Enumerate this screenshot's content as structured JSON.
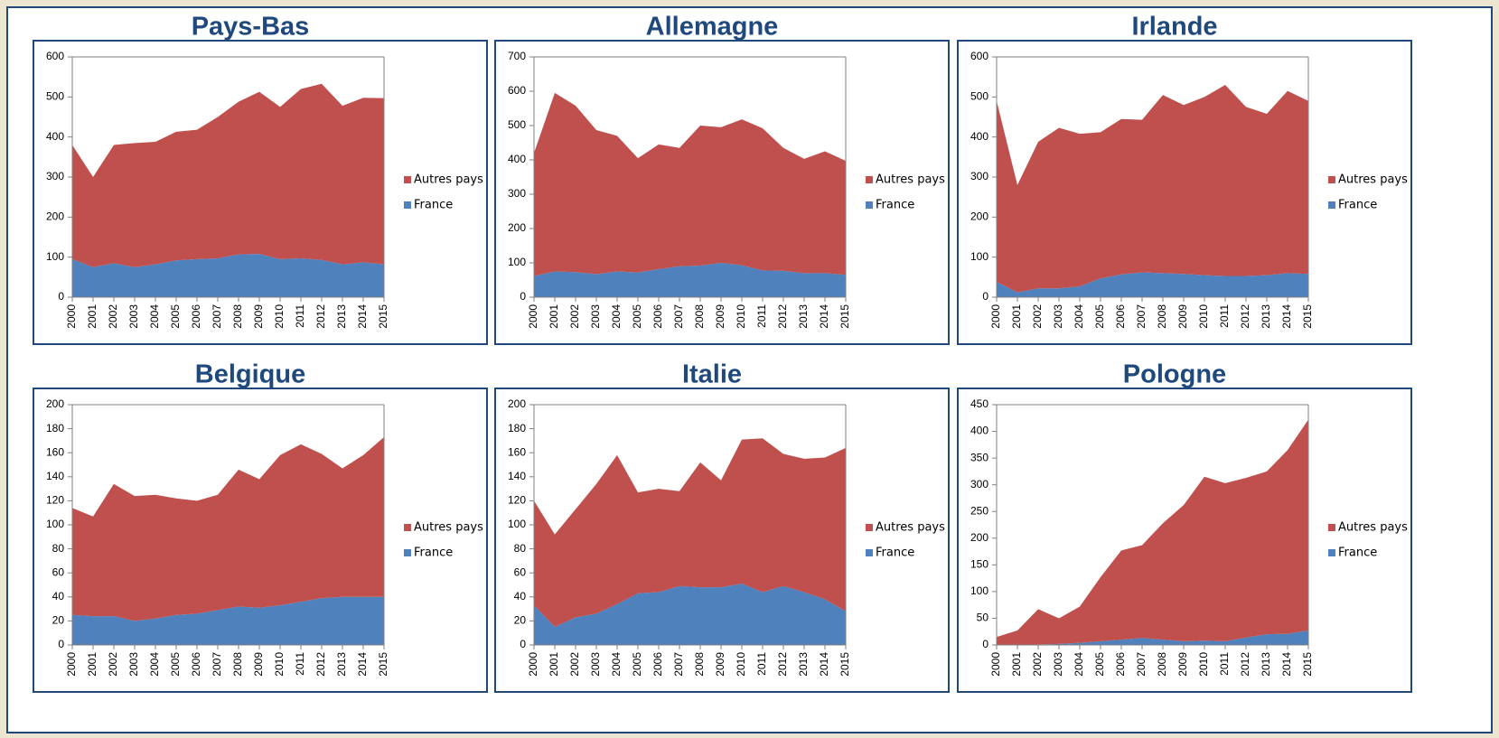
{
  "chart_data": [
    {
      "type": "stacked-area",
      "title": "Pays-Bas",
      "categories": [
        "2000",
        "2001",
        "2002",
        "2003",
        "2004",
        "2005",
        "2006",
        "2007",
        "2008",
        "2009",
        "2010",
        "2011",
        "2012",
        "2013",
        "2014",
        "2015"
      ],
      "series": [
        {
          "name": "France",
          "color": "#4f81bd",
          "values": [
            95,
            75,
            85,
            75,
            82,
            92,
            95,
            97,
            107,
            108,
            95,
            97,
            93,
            82,
            87,
            82
          ]
        },
        {
          "name": "Autres pays",
          "color": "#c0504d",
          "values": [
            285,
            225,
            295,
            310,
            306,
            321,
            323,
            353,
            381,
            405,
            380,
            423,
            440,
            396,
            411,
            415
          ]
        }
      ],
      "ylim": [
        0,
        600
      ],
      "yticks": [
        0,
        100,
        200,
        300,
        400,
        500,
        600
      ]
    },
    {
      "type": "stacked-area",
      "title": "Allemagne",
      "categories": [
        "2000",
        "2001",
        "2002",
        "2003",
        "2004",
        "2005",
        "2006",
        "2007",
        "2008",
        "2009",
        "2010",
        "2011",
        "2012",
        "2013",
        "2014",
        "2015"
      ],
      "series": [
        {
          "name": "France",
          "color": "#4f81bd",
          "values": [
            62,
            75,
            73,
            67,
            75,
            72,
            82,
            90,
            92,
            100,
            93,
            78,
            77,
            70,
            70,
            65
          ]
        },
        {
          "name": "Autres pays",
          "color": "#c0504d",
          "values": [
            358,
            520,
            485,
            420,
            395,
            333,
            363,
            345,
            408,
            395,
            425,
            414,
            358,
            333,
            355,
            332
          ]
        }
      ],
      "ylim": [
        0,
        700
      ],
      "yticks": [
        0,
        100,
        200,
        300,
        400,
        500,
        600,
        700
      ]
    },
    {
      "type": "stacked-area",
      "title": "Irlande",
      "categories": [
        "2000",
        "2001",
        "2002",
        "2003",
        "2004",
        "2005",
        "2006",
        "2007",
        "2008",
        "2009",
        "2010",
        "2011",
        "2012",
        "2013",
        "2014",
        "2015"
      ],
      "series": [
        {
          "name": "France",
          "color": "#4f81bd",
          "values": [
            38,
            12,
            22,
            22,
            27,
            47,
            57,
            62,
            60,
            58,
            55,
            53,
            53,
            55,
            60,
            58
          ]
        },
        {
          "name": "Autres pays",
          "color": "#c0504d",
          "values": [
            452,
            268,
            366,
            401,
            381,
            365,
            388,
            381,
            445,
            422,
            445,
            477,
            422,
            403,
            455,
            432
          ]
        }
      ],
      "ylim": [
        0,
        600
      ],
      "yticks": [
        0,
        100,
        200,
        300,
        400,
        500,
        600
      ]
    },
    {
      "type": "stacked-area",
      "title": "Belgique",
      "categories": [
        "2000",
        "2001",
        "2002",
        "2003",
        "2004",
        "2005",
        "2006",
        "2007",
        "2008",
        "2009",
        "2010",
        "2011",
        "2012",
        "2013",
        "2014",
        "2015"
      ],
      "series": [
        {
          "name": "France",
          "color": "#4f81bd",
          "values": [
            25,
            24,
            24,
            20,
            22,
            25,
            26,
            29,
            32,
            31,
            33,
            36,
            39,
            40,
            40,
            40
          ]
        },
        {
          "name": "Autres pays",
          "color": "#c0504d",
          "values": [
            89,
            83,
            110,
            104,
            103,
            97,
            94,
            96,
            114,
            107,
            125,
            131,
            120,
            107,
            118,
            133
          ]
        }
      ],
      "ylim": [
        0,
        200
      ],
      "yticks": [
        0,
        20,
        40,
        60,
        80,
        100,
        120,
        140,
        160,
        180,
        200
      ]
    },
    {
      "type": "stacked-area",
      "title": "Italie",
      "categories": [
        "2000",
        "2001",
        "2002",
        "2003",
        "2004",
        "2005",
        "2006",
        "2007",
        "2008",
        "2009",
        "2010",
        "2011",
        "2012",
        "2013",
        "2014",
        "2015"
      ],
      "series": [
        {
          "name": "France",
          "color": "#4f81bd",
          "values": [
            33,
            15,
            23,
            26,
            34,
            43,
            44,
            49,
            48,
            48,
            51,
            44,
            49,
            44,
            38,
            28
          ]
        },
        {
          "name": "Autres pays",
          "color": "#c0504d",
          "values": [
            87,
            77,
            90,
            108,
            124,
            84,
            86,
            79,
            104,
            89,
            120,
            128,
            110,
            111,
            118,
            136
          ]
        }
      ],
      "ylim": [
        0,
        200
      ],
      "yticks": [
        0,
        20,
        40,
        60,
        80,
        100,
        120,
        140,
        160,
        180,
        200
      ]
    },
    {
      "type": "stacked-area",
      "title": "Pologne",
      "categories": [
        "2000",
        "2001",
        "2002",
        "2003",
        "2004",
        "2005",
        "2006",
        "2007",
        "2008",
        "2009",
        "2010",
        "2011",
        "2012",
        "2013",
        "2014",
        "2015"
      ],
      "series": [
        {
          "name": "France",
          "color": "#4f81bd",
          "values": [
            0,
            0,
            1,
            2,
            4,
            7,
            10,
            13,
            10,
            7,
            8,
            7,
            14,
            20,
            21,
            27
          ]
        },
        {
          "name": "Autres pays",
          "color": "#c0504d",
          "values": [
            15,
            27,
            66,
            48,
            68,
            120,
            167,
            174,
            218,
            255,
            307,
            296,
            299,
            305,
            344,
            395
          ]
        }
      ],
      "ylim": [
        0,
        450
      ],
      "yticks": [
        0,
        50,
        100,
        150,
        200,
        250,
        300,
        350,
        400,
        450
      ]
    }
  ]
}
